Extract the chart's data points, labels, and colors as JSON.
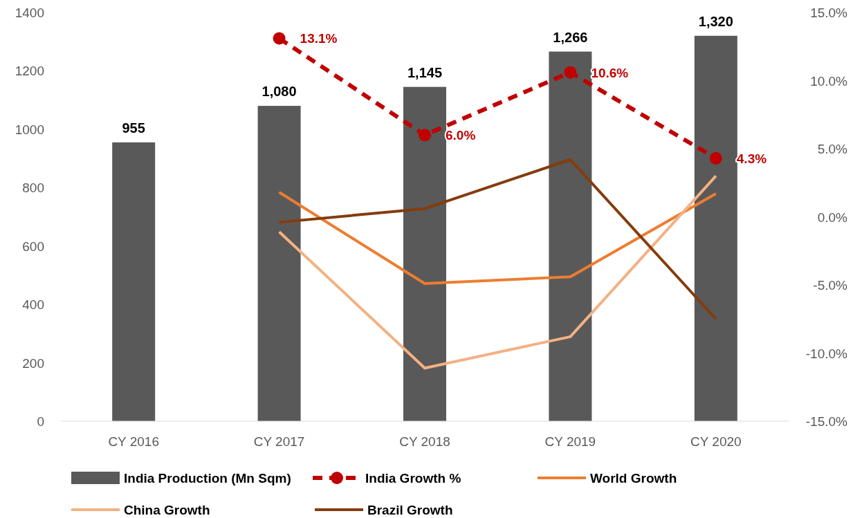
{
  "chart_data": {
    "type": "bar",
    "categories": [
      "CY 2016",
      "CY 2017",
      "CY 2018",
      "CY 2019",
      "CY 2020"
    ],
    "ylim": [
      0,
      1400
    ],
    "yticks": [
      0,
      200,
      400,
      600,
      800,
      1000,
      1200,
      1400
    ],
    "y2lim": [
      -15,
      15
    ],
    "y2ticks": [
      {
        "value": -15,
        "label": "-15.0%"
      },
      {
        "value": -10,
        "label": "-10.0%"
      },
      {
        "value": -5,
        "label": "-5.0%"
      },
      {
        "value": 0,
        "label": "0.0%"
      },
      {
        "value": 5,
        "label": "5.0%"
      },
      {
        "value": 10,
        "label": "10.0%"
      },
      {
        "value": 15,
        "label": "15.0%"
      }
    ],
    "legend": "bottom",
    "grid": false,
    "series": [
      {
        "name": "India Production (Mn Sqm)",
        "color": "#595959",
        "values": [
          955,
          1080,
          1145,
          1266,
          1320
        ],
        "value_labels": [
          "955",
          "1,080",
          "1,145",
          "1,266",
          "1,320"
        ]
      },
      {
        "name": "India Growth %",
        "type": "line",
        "axis": "y2",
        "color": "#c00000",
        "marker": "circle",
        "line_style": "dashed",
        "values": [
          null,
          13.1,
          6.0,
          10.6,
          4.3
        ],
        "value_labels": [
          null,
          "13.1%",
          "6.0%",
          "10.6%",
          "4.3%"
        ]
      },
      {
        "name": "World Growth",
        "type": "line",
        "axis": "y2",
        "color": "#ed7d31",
        "marker": "none",
        "line_style": "solid",
        "values": [
          null,
          1.8,
          -4.9,
          -4.4,
          1.7
        ]
      },
      {
        "name": "China Growth",
        "type": "line",
        "axis": "y2",
        "color": "#f4b183",
        "marker": "none",
        "line_style": "solid",
        "values": [
          null,
          -1.1,
          -11.1,
          -8.8,
          3.0
        ]
      },
      {
        "name": "Brazil Growth",
        "type": "line",
        "axis": "y2",
        "color": "#843c0c",
        "marker": "none",
        "line_style": "solid",
        "values": [
          null,
          -0.4,
          0.6,
          4.2,
          -7.5
        ]
      }
    ]
  }
}
